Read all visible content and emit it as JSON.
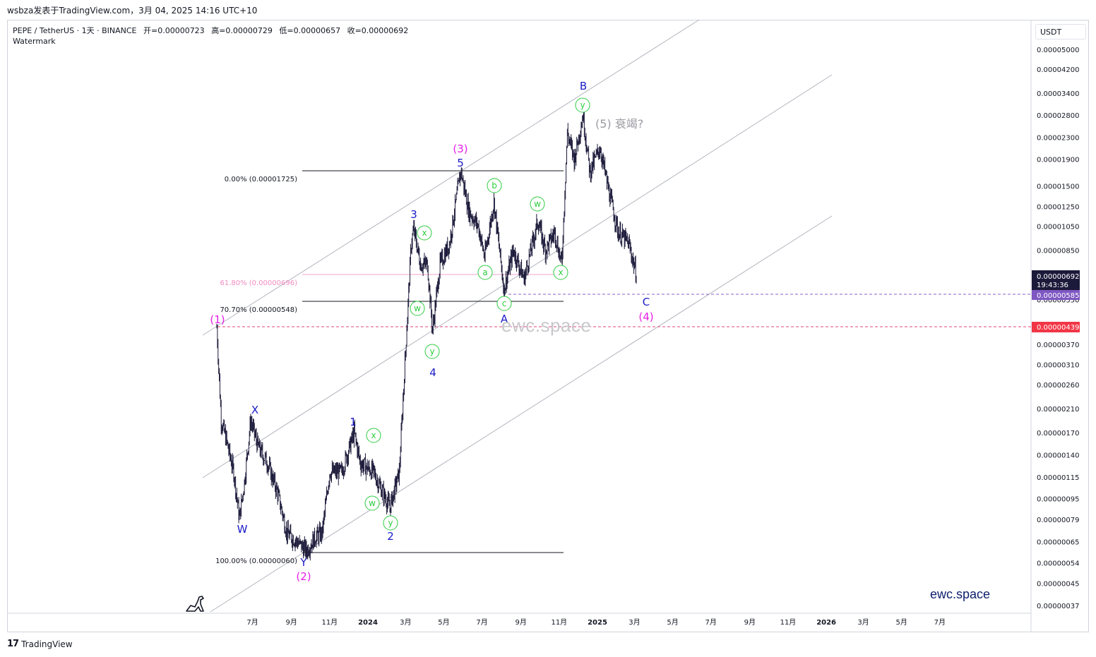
{
  "header": {
    "caption": "wsbza发表于TradingView.com，3月 04, 2025 14:16 UTC+10"
  },
  "legend": {
    "pair": "PEPE / TetherUS · 1天 · BINANCE",
    "open": "开=0.00000723",
    "high": "高=0.00000729",
    "low": "低=0.00000657",
    "close": "收=0.00000692",
    "watermark": "Watermark"
  },
  "axis": {
    "currency": "USDT",
    "price_labels": [
      "0.00005000",
      "0.00004200",
      "0.00003400",
      "0.00002800",
      "0.00002300",
      "0.00001900",
      "0.00001500",
      "0.00001250",
      "0.00001050",
      "0.00000850",
      "0.00000550",
      "0.00000370",
      "0.00000310",
      "0.00000260",
      "0.00000210",
      "0.00000170",
      "0.00000140",
      "0.00000115",
      "0.00000095",
      "0.00000079",
      "0.00000065",
      "0.00000054",
      "0.00000045",
      "0.00000037"
    ],
    "time_labels": [
      "7月",
      "9月",
      "11月",
      "2024",
      "3月",
      "5月",
      "7月",
      "9月",
      "11月",
      "2025",
      "3月",
      "5月",
      "7月",
      "9月",
      "11月",
      "2026",
      "3月",
      "5月",
      "7月"
    ]
  },
  "tags": {
    "current_price": "0.00000692",
    "countdown": "19:43:36",
    "purple_level": "0.00000585",
    "red_level": "0.00000439"
  },
  "fib": {
    "l0": "0.00% (0.00001725)",
    "l618": "61.80% (0.00000696)",
    "l707": "70.70% (0.00000548)",
    "l100": "100.00% (0.00000060)"
  },
  "waves": {
    "p1": "(1)",
    "p2": "(2)",
    "p3": "(3)",
    "p4": "(4)",
    "p5": "(5) 衰竭?",
    "W": "W",
    "X": "X",
    "Y": "Y",
    "n1": "1",
    "n2": "2",
    "n3": "3",
    "n4": "4",
    "n5": "5",
    "A": "A",
    "B": "B",
    "C": "C",
    "c_w1": "w",
    "c_x1": "x",
    "c_y1": "y",
    "c_x2": "x",
    "c_w2": "w",
    "c_y2": "y",
    "c_a": "a",
    "c_b": "b",
    "c_c": "c",
    "c_w3": "w",
    "c_x3": "x",
    "c_y3": "y"
  },
  "branding": {
    "ewc": "ewc.space",
    "ewc_watermark": "ewc.space",
    "tradingview": "TradingView",
    "tv_mark": "17"
  },
  "colors": {
    "wave_blue": "#1a1ac8",
    "wave_magenta": "#e61ee6",
    "circle_green": "#2ecc40",
    "candle": "#1c1a3a",
    "purple_tag": "#7e57c2",
    "red_tag": "#f23645",
    "price_tag": "#1c1a3a"
  },
  "chart_data": {
    "type": "candlestick",
    "symbol": "PEPE / TetherUS",
    "interval": "1天",
    "exchange": "BINANCE",
    "scale": "log",
    "last": {
      "open": 7.23e-06,
      "high": 7.29e-06,
      "low": 6.57e-06,
      "close": 6.92e-06
    },
    "horizontal_levels": [
      5.85e-06,
      4.39e-06
    ],
    "fib_levels": [
      {
        "pct": 0.0,
        "price": 1.725e-05
      },
      {
        "pct": 61.8,
        "price": 6.96e-06
      },
      {
        "pct": 70.7,
        "price": 5.48e-06
      },
      {
        "pct": 100.0,
        "price": 6e-07
      }
    ],
    "path": [
      [
        "2023-05-05",
        4.3e-06
      ],
      [
        "2023-05-12",
        1.9e-06
      ],
      [
        "2023-05-20",
        1.6e-06
      ],
      [
        "2023-06-01",
        1.2e-06
      ],
      [
        "2023-06-10",
        8e-07
      ],
      [
        "2023-06-18",
        1.1e-06
      ],
      [
        "2023-06-28",
        1.9e-06
      ],
      [
        "2023-07-10",
        1.5e-06
      ],
      [
        "2023-07-25",
        1.3e-06
      ],
      [
        "2023-08-10",
        1e-06
      ],
      [
        "2023-08-25",
        7e-07
      ],
      [
        "2023-09-10",
        6.5e-07
      ],
      [
        "2023-09-25",
        6e-07
      ],
      [
        "2023-10-10",
        6.8e-07
      ],
      [
        "2023-10-20",
        7e-07
      ],
      [
        "2023-11-01",
        1.2e-06
      ],
      [
        "2023-11-20",
        1.2e-06
      ],
      [
        "2023-12-10",
        1.7e-06
      ],
      [
        "2023-12-20",
        1.3e-06
      ],
      [
        "2024-01-10",
        1.2e-06
      ],
      [
        "2024-01-25",
        1e-06
      ],
      [
        "2024-02-05",
        8.8e-07
      ],
      [
        "2024-02-20",
        1.2e-06
      ],
      [
        "2024-03-01",
        3.5e-06
      ],
      [
        "2024-03-10",
        9e-06
      ],
      [
        "2024-03-14",
        1.02e-05
      ],
      [
        "2024-03-25",
        7.5e-06
      ],
      [
        "2024-04-05",
        7.5e-06
      ],
      [
        "2024-04-13",
        4.2e-06
      ],
      [
        "2024-04-25",
        7.5e-06
      ],
      [
        "2024-05-10",
        9e-06
      ],
      [
        "2024-05-28",
        1.72e-05
      ],
      [
        "2024-06-10",
        1.2e-05
      ],
      [
        "2024-06-25",
        1.05e-05
      ],
      [
        "2024-07-05",
        8e-06
      ],
      [
        "2024-07-20",
        1.3e-05
      ],
      [
        "2024-08-05",
        6e-06
      ],
      [
        "2024-08-20",
        8.5e-06
      ],
      [
        "2024-09-06",
        6.6e-06
      ],
      [
        "2024-09-28",
        1.1e-05
      ],
      [
        "2024-10-10",
        8.5e-06
      ],
      [
        "2024-10-25",
        1e-05
      ],
      [
        "2024-11-05",
        7.5e-06
      ],
      [
        "2024-11-14",
        2.4e-05
      ],
      [
        "2024-11-25",
        1.9e-05
      ],
      [
        "2024-12-09",
        2.8e-05
      ],
      [
        "2024-12-20",
        1.7e-05
      ],
      [
        "2025-01-05",
        2.1e-05
      ],
      [
        "2025-01-20",
        1.4e-05
      ],
      [
        "2025-02-03",
        1e-05
      ],
      [
        "2025-02-20",
        9e-06
      ],
      [
        "2025-03-04",
        6.9e-06
      ]
    ]
  }
}
